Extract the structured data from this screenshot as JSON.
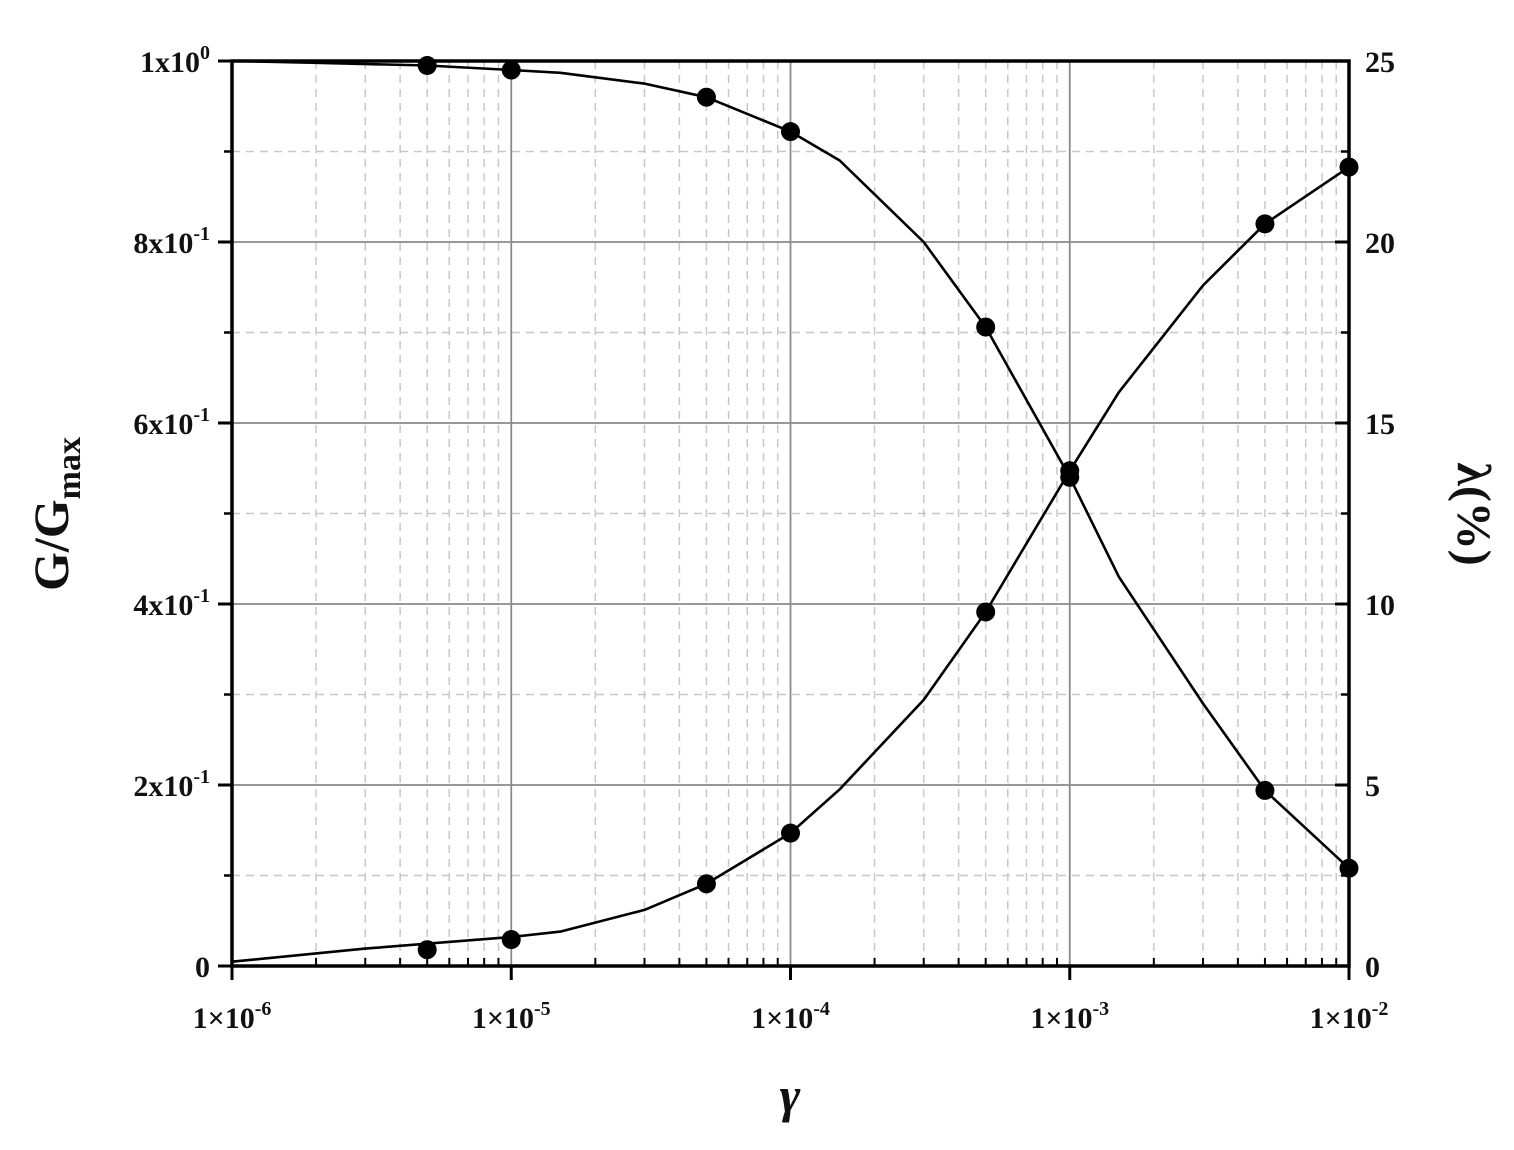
{
  "chart_data": {
    "type": "line",
    "x_scale": "log",
    "xlim": [
      1e-06,
      0.01
    ],
    "ylim_left": [
      0,
      1
    ],
    "ylim_right": [
      0,
      25
    ],
    "grid": true,
    "xlabel": "γ",
    "ylabel_left": {
      "main": "G/G",
      "sub": "max"
    },
    "ylabel_right": "λ(%)",
    "x_ticks": [
      {
        "value": 1e-06,
        "base": "1×10",
        "exp": "-6"
      },
      {
        "value": 1e-05,
        "base": "1×10",
        "exp": "-5"
      },
      {
        "value": 0.0001,
        "base": "1×10",
        "exp": "-4"
      },
      {
        "value": 0.001,
        "base": "1×10",
        "exp": "-3"
      },
      {
        "value": 0.01,
        "base": "1×10",
        "exp": "-2"
      }
    ],
    "y_left_ticks": [
      {
        "value": 0,
        "base": "0",
        "exp": ""
      },
      {
        "value": 0.2,
        "base": "2x10",
        "exp": "-1"
      },
      {
        "value": 0.4,
        "base": "4x10",
        "exp": "-1"
      },
      {
        "value": 0.6,
        "base": "6x10",
        "exp": "-1"
      },
      {
        "value": 0.8,
        "base": "8x10",
        "exp": "-1"
      },
      {
        "value": 1.0,
        "base": "1x10",
        "exp": "0"
      }
    ],
    "y_right_ticks": [
      {
        "value": 0,
        "label": "0"
      },
      {
        "value": 5,
        "label": "5"
      },
      {
        "value": 10,
        "label": "10"
      },
      {
        "value": 15,
        "label": "15"
      },
      {
        "value": 20,
        "label": "20"
      },
      {
        "value": 25,
        "label": "25"
      }
    ],
    "series": [
      {
        "axis": "left",
        "points": [
          {
            "x": 5e-06,
            "y": 0.995
          },
          {
            "x": 1e-05,
            "y": 0.99
          },
          {
            "x": 5e-05,
            "y": 0.96
          },
          {
            "x": 0.0001,
            "y": 0.922
          },
          {
            "x": 0.0005,
            "y": 0.706
          },
          {
            "x": 0.001,
            "y": 0.54
          },
          {
            "x": 0.005,
            "y": 0.194
          },
          {
            "x": 0.01,
            "y": 0.108
          }
        ],
        "curve": [
          {
            "x": 1e-06,
            "y": 1.0
          },
          {
            "x": 2e-06,
            "y": 0.998
          },
          {
            "x": 5e-06,
            "y": 0.995
          },
          {
            "x": 1e-05,
            "y": 0.99
          },
          {
            "x": 1.5e-05,
            "y": 0.987
          },
          {
            "x": 3e-05,
            "y": 0.975
          },
          {
            "x": 5e-05,
            "y": 0.96
          },
          {
            "x": 0.0001,
            "y": 0.922
          },
          {
            "x": 0.00015,
            "y": 0.89
          },
          {
            "x": 0.0003,
            "y": 0.8
          },
          {
            "x": 0.0005,
            "y": 0.706
          },
          {
            "x": 0.001,
            "y": 0.54
          },
          {
            "x": 0.0015,
            "y": 0.43
          },
          {
            "x": 0.003,
            "y": 0.29
          },
          {
            "x": 0.005,
            "y": 0.194
          },
          {
            "x": 0.01,
            "y": 0.108
          }
        ]
      },
      {
        "axis": "right",
        "points": [
          {
            "x": 5e-06,
            "y": 0.45
          },
          {
            "x": 1e-05,
            "y": 0.73
          },
          {
            "x": 5e-05,
            "y": 2.27
          },
          {
            "x": 0.0001,
            "y": 3.67
          },
          {
            "x": 0.0005,
            "y": 9.78
          },
          {
            "x": 0.001,
            "y": 13.68
          },
          {
            "x": 0.005,
            "y": 20.5
          },
          {
            "x": 0.01,
            "y": 22.07
          }
        ],
        "curve": [
          {
            "x": 1e-06,
            "y": 0.12
          },
          {
            "x": 3e-06,
            "y": 0.48
          },
          {
            "x": 1e-05,
            "y": 0.8
          },
          {
            "x": 1.5e-05,
            "y": 0.95
          },
          {
            "x": 3e-05,
            "y": 1.55
          },
          {
            "x": 5e-05,
            "y": 2.27
          },
          {
            "x": 0.0001,
            "y": 3.67
          },
          {
            "x": 0.00015,
            "y": 4.88
          },
          {
            "x": 0.0003,
            "y": 7.35
          },
          {
            "x": 0.0005,
            "y": 9.78
          },
          {
            "x": 0.001,
            "y": 13.68
          },
          {
            "x": 0.0015,
            "y": 15.85
          },
          {
            "x": 0.003,
            "y": 18.8
          },
          {
            "x": 0.005,
            "y": 20.5
          },
          {
            "x": 0.01,
            "y": 22.07
          }
        ]
      }
    ]
  }
}
